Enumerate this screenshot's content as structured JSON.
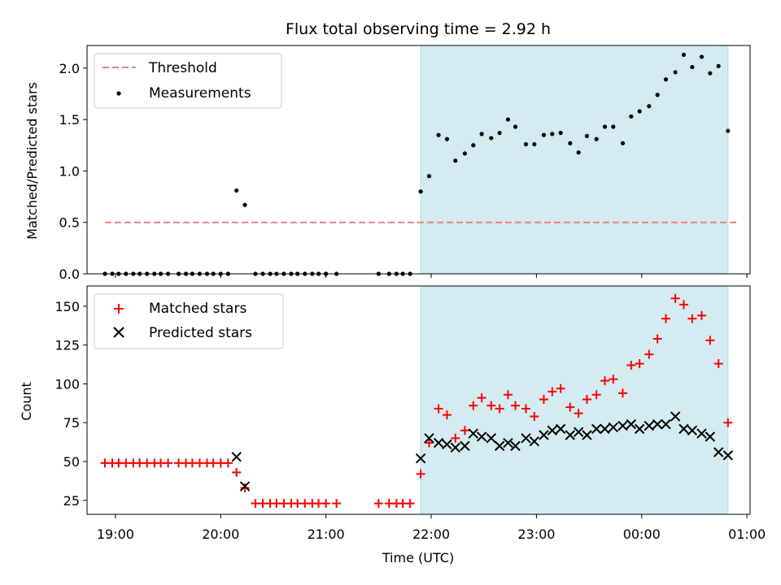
{
  "figure": {
    "title": "Flux total observing time = 2.92 h",
    "colors": {
      "shade": "#d4ebf1",
      "threshold": "#f08080",
      "matched": "#ff0000",
      "predicted": "#000000",
      "measure": "#000000"
    }
  },
  "chart_data": [
    {
      "type": "scatter",
      "title": "Flux total observing time = 2.92 h",
      "xlabel": "",
      "ylabel": "Matched/Predicted stars",
      "xlim": [
        18.73,
        25.03
      ],
      "ylim": [
        0,
        2.22
      ],
      "xticks": [
        19,
        20,
        21,
        22,
        23,
        24,
        25
      ],
      "yticks": [
        {
          "v": 0.0,
          "label": "0.0"
        },
        {
          "v": 0.5,
          "label": "0.5"
        },
        {
          "v": 1.0,
          "label": "1.0"
        },
        {
          "v": 1.5,
          "label": "1.5"
        },
        {
          "v": 2.0,
          "label": "2.0"
        }
      ],
      "shaded_span": [
        21.9,
        24.82
      ],
      "legend": {
        "placement": "upper-left",
        "threshold": "Threshold",
        "measurements": "Measurements"
      },
      "threshold": {
        "name": "Threshold",
        "y": 0.5,
        "x": [
          18.9,
          24.9
        ]
      },
      "series": [
        {
          "name": "Measurements",
          "x": [
            18.9,
            18.97,
            19.03,
            19.1,
            19.17,
            19.23,
            19.3,
            19.37,
            19.43,
            19.5,
            19.6,
            19.67,
            19.73,
            19.8,
            19.87,
            19.93,
            20.0,
            20.07,
            20.15,
            20.23,
            20.33,
            20.4,
            20.47,
            20.53,
            20.6,
            20.67,
            20.73,
            20.8,
            20.87,
            20.93,
            21.0,
            21.1,
            21.5,
            21.6,
            21.67,
            21.73,
            21.8,
            21.9,
            21.98,
            22.07,
            22.15,
            22.23,
            22.32,
            22.4,
            22.48,
            22.57,
            22.65,
            22.73,
            22.8,
            22.9,
            22.98,
            23.07,
            23.15,
            23.23,
            23.32,
            23.4,
            23.48,
            23.57,
            23.65,
            23.73,
            23.82,
            23.9,
            23.98,
            24.07,
            24.15,
            24.23,
            24.32,
            24.4,
            24.48,
            24.57,
            24.65,
            24.73,
            24.82
          ],
          "y": [
            0,
            0,
            0,
            0,
            0,
            0,
            0,
            0,
            0,
            0,
            0,
            0,
            0,
            0,
            0,
            0,
            0,
            0,
            0.81,
            0.67,
            0,
            0,
            0,
            0,
            0,
            0,
            0,
            0,
            0,
            0,
            0,
            0,
            0,
            0,
            0,
            0,
            0,
            0.8,
            0.95,
            1.35,
            1.31,
            1.1,
            1.17,
            1.25,
            1.36,
            1.32,
            1.37,
            1.5,
            1.43,
            1.26,
            1.26,
            1.35,
            1.36,
            1.37,
            1.27,
            1.18,
            1.34,
            1.31,
            1.43,
            1.43,
            1.27,
            1.53,
            1.58,
            1.63,
            1.74,
            1.89,
            1.96,
            2.13,
            2.01,
            2.11,
            1.95,
            2.02,
            1.39
          ]
        }
      ]
    },
    {
      "type": "scatter",
      "title": "",
      "xlabel": "Time (UTC)",
      "ylabel": "Count",
      "xlim": [
        18.73,
        25.03
      ],
      "ylim": [
        16,
        163
      ],
      "xticks": [
        19,
        20,
        21,
        22,
        23,
        24,
        25
      ],
      "xticklabels": [
        "19:00",
        "20:00",
        "21:00",
        "22:00",
        "23:00",
        "00:00",
        "01:00"
      ],
      "yticks": [
        {
          "v": 25,
          "label": "25"
        },
        {
          "v": 50,
          "label": "50"
        },
        {
          "v": 75,
          "label": "75"
        },
        {
          "v": 100,
          "label": "100"
        },
        {
          "v": 125,
          "label": "125"
        },
        {
          "v": 150,
          "label": "150"
        }
      ],
      "shaded_span": [
        21.9,
        24.82
      ],
      "legend": {
        "placement": "upper-left",
        "matched": "Matched stars",
        "predicted": "Predicted stars"
      },
      "series": [
        {
          "name": "Matched stars",
          "x": [
            18.9,
            18.97,
            19.03,
            19.1,
            19.17,
            19.23,
            19.3,
            19.37,
            19.43,
            19.5,
            19.6,
            19.67,
            19.73,
            19.8,
            19.87,
            19.93,
            20.0,
            20.07,
            20.15,
            20.23,
            20.33,
            20.4,
            20.47,
            20.53,
            20.6,
            20.67,
            20.73,
            20.8,
            20.87,
            20.93,
            21.0,
            21.1,
            21.5,
            21.6,
            21.67,
            21.73,
            21.8,
            21.9,
            21.98,
            22.07,
            22.15,
            22.23,
            22.32,
            22.4,
            22.48,
            22.57,
            22.65,
            22.73,
            22.8,
            22.9,
            22.98,
            23.07,
            23.15,
            23.23,
            23.32,
            23.4,
            23.48,
            23.57,
            23.65,
            23.73,
            23.82,
            23.9,
            23.98,
            24.07,
            24.15,
            24.23,
            24.32,
            24.4,
            24.48,
            24.57,
            24.65,
            24.73,
            24.82
          ],
          "y": [
            49,
            49,
            49,
            49,
            49,
            49,
            49,
            49,
            49,
            49,
            49,
            49,
            49,
            49,
            49,
            49,
            49,
            49,
            43,
            33,
            23,
            23,
            23,
            23,
            23,
            23,
            23,
            23,
            23,
            23,
            23,
            23,
            23,
            23,
            23,
            23,
            23,
            42,
            62,
            84,
            80,
            65,
            70,
            86,
            91,
            86,
            84,
            93,
            86,
            84,
            79,
            90,
            95,
            97,
            85,
            81,
            90,
            93,
            102,
            103,
            94,
            112,
            113,
            119,
            129,
            142,
            155,
            151,
            142,
            144,
            128,
            113,
            75
          ]
        },
        {
          "name": "Predicted stars",
          "x": [
            20.15,
            20.23,
            21.9,
            21.98,
            22.07,
            22.15,
            22.23,
            22.32,
            22.4,
            22.48,
            22.57,
            22.65,
            22.73,
            22.8,
            22.9,
            22.98,
            23.07,
            23.15,
            23.23,
            23.32,
            23.4,
            23.48,
            23.57,
            23.65,
            23.73,
            23.82,
            23.9,
            23.98,
            24.07,
            24.15,
            24.23,
            24.32,
            24.4,
            24.48,
            24.57,
            24.65,
            24.73,
            24.82
          ],
          "y": [
            53,
            34,
            52,
            65,
            62,
            61,
            59,
            60,
            68,
            66,
            65,
            60,
            62,
            60,
            65,
            63,
            67,
            70,
            71,
            67,
            69,
            67,
            71,
            71,
            72,
            73,
            74,
            71,
            73,
            74,
            74,
            79,
            71,
            70,
            68,
            66,
            56,
            54
          ]
        }
      ]
    }
  ]
}
